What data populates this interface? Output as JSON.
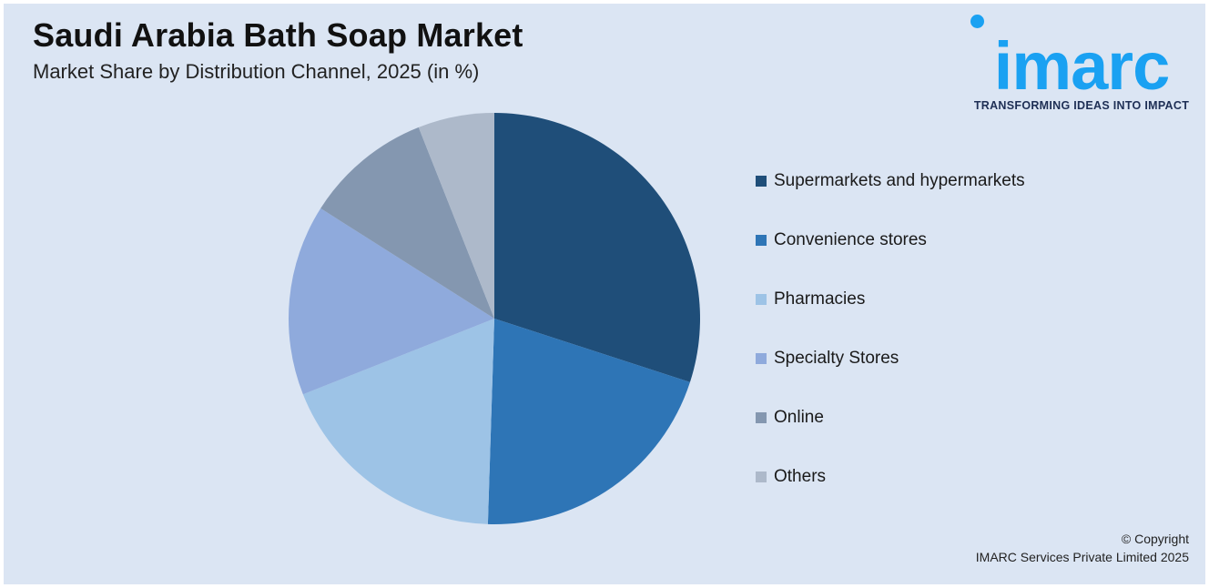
{
  "header": {
    "title": "Saudi Arabia Bath Soap Market",
    "subtitle": "Market Share by Distribution Channel, 2025 (in %)"
  },
  "logo": {
    "wordmark": "imarc",
    "tagline": "TRANSFORMING IDEAS INTO IMPACT",
    "color": "#1aa1f2"
  },
  "chart_data": {
    "type": "pie",
    "title": "Saudi Arabia Bath Soap Market",
    "subtitle": "Market Share by Distribution Channel, 2025 (in %)",
    "legend_position": "right",
    "slices": [
      {
        "label": "Supermarkets and hypermarkets",
        "value": 30,
        "color": "#1f4e79"
      },
      {
        "label": "Convenience stores",
        "value": 20.5,
        "color": "#2e75b6"
      },
      {
        "label": "Pharmacies",
        "value": 18.5,
        "color": "#9dc3e6"
      },
      {
        "label": "Specialty Stores",
        "value": 15,
        "color": "#8faadc"
      },
      {
        "label": "Online",
        "value": 10,
        "color": "#8497b0"
      },
      {
        "label": "Others",
        "value": 6,
        "color": "#adb9ca"
      }
    ]
  },
  "footer": {
    "copyright_line1": "© Copyright",
    "copyright_line2": "IMARC Services Private Limited 2025"
  }
}
